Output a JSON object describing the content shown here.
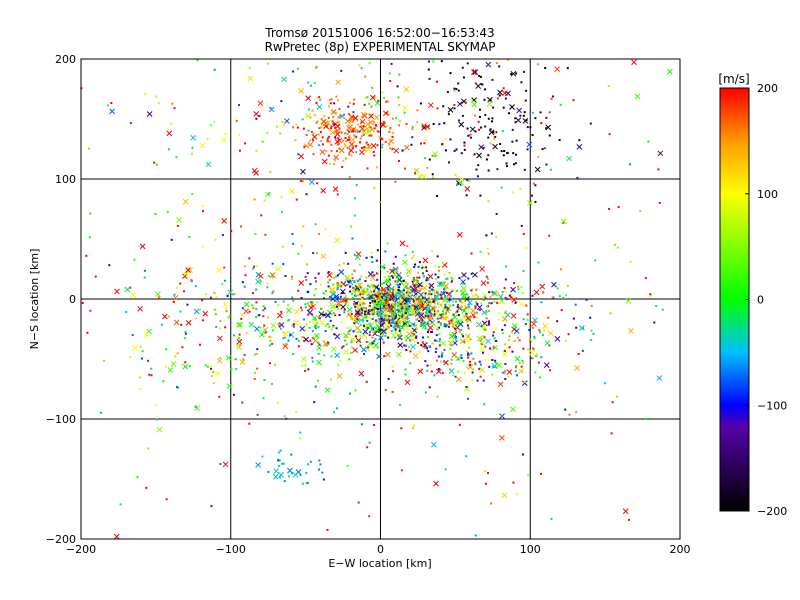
{
  "chart_data": {
    "type": "scatter",
    "title": "Tromsø 20151006 16:52:00−16:53:43",
    "subtitle": "RwPretec (8p) EXPERIMENTAL SKYMAP",
    "xlabel": "E−W location [km]",
    "ylabel": "N−S location [km]",
    "xlim": [
      -200,
      200
    ],
    "ylim": [
      -200,
      200
    ],
    "x_ticks": [
      -200,
      -100,
      0,
      100,
      200
    ],
    "y_ticks": [
      -200,
      -100,
      0,
      100,
      200
    ],
    "x_tick_labels": [
      "−200",
      "−100",
      "0",
      "100",
      "200"
    ],
    "y_tick_labels": [
      "−200",
      "−100",
      "0",
      "100",
      "200"
    ],
    "grid": true,
    "marker_types": [
      "dot",
      "x"
    ],
    "colorbar": {
      "label": "[m/s]",
      "range": [
        -200,
        200
      ],
      "ticks": [
        200,
        100,
        0,
        -100,
        -200
      ],
      "tick_labels": [
        "200",
        "100",
        "0",
        "−100",
        "−200"
      ],
      "colormap": [
        "#000000",
        "#ff0000"
      ],
      "colormap_stops": [
        {
          "value": -200,
          "color": "#000000"
        },
        {
          "value": -120,
          "color": "#5500aa"
        },
        {
          "value": -100,
          "color": "#0000ff"
        },
        {
          "value": -50,
          "color": "#00bfff"
        },
        {
          "value": 0,
          "color": "#00ff00"
        },
        {
          "value": 100,
          "color": "#ffff00"
        },
        {
          "value": 150,
          "color": "#ff9900"
        },
        {
          "value": 200,
          "color": "#ff0000"
        }
      ]
    },
    "clusters": [
      {
        "name": "central-core",
        "cx": 10,
        "cy": -5,
        "sx": 22,
        "sy": 14,
        "n": 900,
        "v_mean": 0,
        "v_spread": 200
      },
      {
        "name": "central-wide",
        "cx": 15,
        "cy": -10,
        "sx": 55,
        "sy": 22,
        "n": 500,
        "v_mean": 40,
        "v_spread": 200
      },
      {
        "name": "north-red-patch",
        "cx": -20,
        "cy": 140,
        "sx": 18,
        "sy": 14,
        "n": 220,
        "v_mean": 170,
        "v_spread": 40
      },
      {
        "name": "north-east-dark",
        "cx": 75,
        "cy": 150,
        "sx": 25,
        "sy": 35,
        "n": 160,
        "v_mean": -180,
        "v_spread": 40
      },
      {
        "name": "north-spread",
        "cx": -10,
        "cy": 150,
        "sx": 90,
        "sy": 30,
        "n": 180,
        "v_mean": 60,
        "v_spread": 200
      },
      {
        "name": "south-east-trail",
        "cx": 60,
        "cy": -45,
        "sx": 30,
        "sy": 15,
        "n": 180,
        "v_mean": 60,
        "v_spread": 200
      },
      {
        "name": "west-arm",
        "cx": -90,
        "cy": -20,
        "sx": 45,
        "sy": 30,
        "n": 200,
        "v_mean": 100,
        "v_spread": 200
      },
      {
        "name": "south-cyan",
        "cx": -60,
        "cy": -140,
        "sx": 12,
        "sy": 8,
        "n": 30,
        "v_mean": -50,
        "v_spread": 20
      },
      {
        "name": "sparse-background",
        "cx": 0,
        "cy": 0,
        "sx": 110,
        "sy": 110,
        "n": 400,
        "v_mean": 80,
        "v_spread": 200
      }
    ]
  }
}
